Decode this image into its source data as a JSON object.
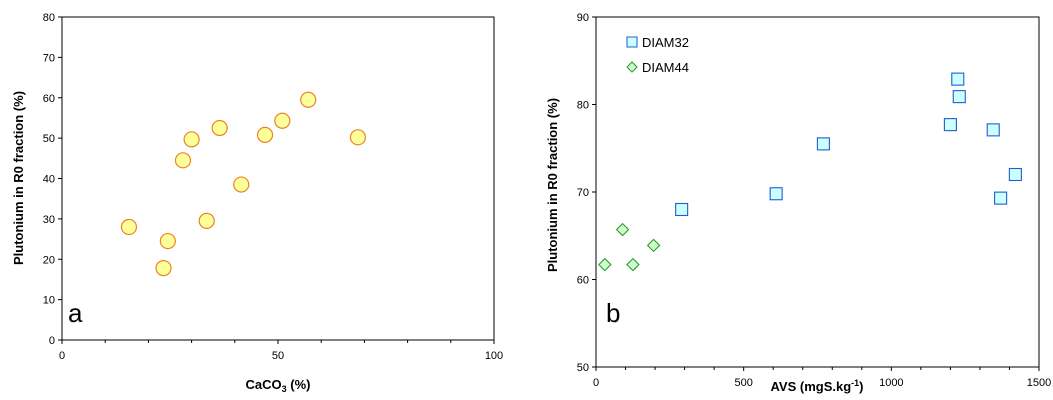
{
  "chart_data": [
    {
      "type": "scatter",
      "panel_label": "a",
      "xlabel": "CaCO",
      "xlabel_sub": "3",
      "xlabel_suffix": " (%)",
      "ylabel": "Plutonium in R0 fraction (%)",
      "xlim": [
        0,
        100
      ],
      "ylim": [
        0,
        80
      ],
      "xticks": [
        0,
        50,
        100
      ],
      "yticks": [
        0,
        10,
        20,
        30,
        40,
        50,
        60,
        70,
        80
      ],
      "grid": false,
      "series": [
        {
          "marker": "circle",
          "color": "#FFFF99",
          "edge": "#E8832A",
          "points": [
            [
              15.5,
              28
            ],
            [
              23.5,
              17.8
            ],
            [
              24.5,
              24.5
            ],
            [
              28,
              44.5
            ],
            [
              30,
              49.7
            ],
            [
              33.5,
              29.5
            ],
            [
              36.5,
              52.5
            ],
            [
              41.5,
              38.5
            ],
            [
              47,
              50.8
            ],
            [
              51,
              54.3
            ],
            [
              57,
              59.5
            ],
            [
              68.5,
              50.2
            ]
          ]
        }
      ]
    },
    {
      "type": "scatter",
      "panel_label": "b",
      "xlabel": "AVS (mgS.kg",
      "xlabel_sup": "-1",
      "xlabel_suffix": ")",
      "ylabel": "Plutonium in R0 fraction (%)",
      "xlim": [
        0,
        1500
      ],
      "ylim": [
        50,
        90
      ],
      "xticks": [
        0,
        500,
        1000,
        1500
      ],
      "yticks": [
        50,
        60,
        70,
        80,
        90
      ],
      "grid": false,
      "legend_position": "top-left",
      "series": [
        {
          "name": "DIAM32",
          "marker": "square",
          "color": "#CCFFFF",
          "edge": "#1F5FCF",
          "points": [
            [
              290,
              68
            ],
            [
              610,
              69.8
            ],
            [
              770,
              75.5
            ],
            [
              1200,
              77.7
            ],
            [
              1225,
              82.9
            ],
            [
              1230,
              80.9
            ],
            [
              1345,
              77.1
            ],
            [
              1370,
              69.3
            ],
            [
              1420,
              72
            ]
          ]
        },
        {
          "name": "DIAM44",
          "marker": "diamond",
          "color": "#CCFFCC",
          "edge": "#2E9A2E",
          "points": [
            [
              30,
              61.7
            ],
            [
              90,
              65.7
            ],
            [
              125,
              61.7
            ],
            [
              195,
              63.9
            ]
          ]
        }
      ]
    }
  ]
}
